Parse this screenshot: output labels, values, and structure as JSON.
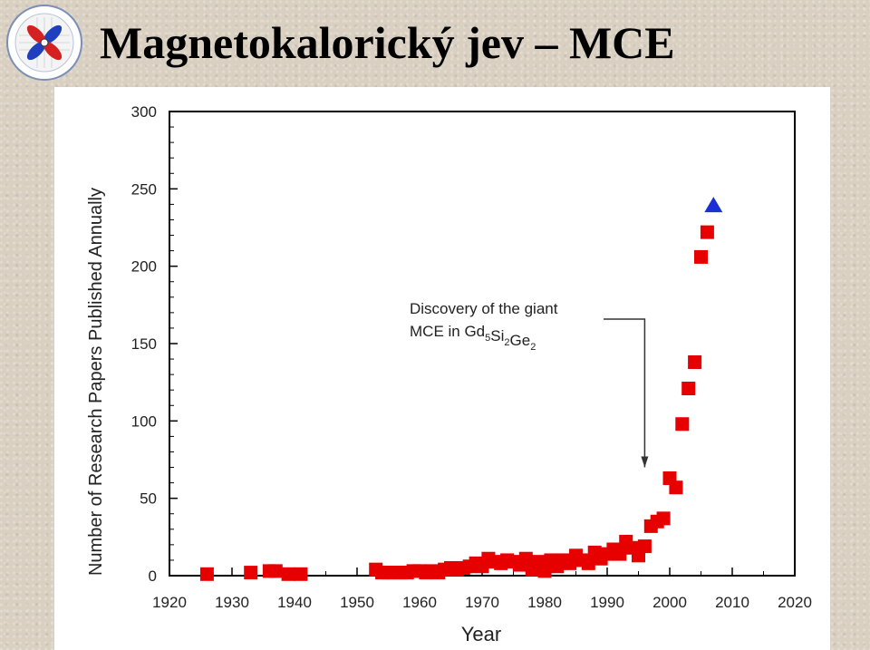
{
  "slide": {
    "title": "Magnetokalorický jev – MCE"
  },
  "colors": {
    "series_marker": "#e60000",
    "highlight_marker": "#1a2fd6",
    "axis": "#000000"
  },
  "chart_data": {
    "type": "scatter",
    "title": "",
    "xlabel": "Year",
    "ylabel": "Number of Research Papers Published Annually",
    "xlim": [
      1920,
      2020
    ],
    "ylim": [
      0,
      300
    ],
    "xticks": [
      1920,
      1930,
      1940,
      1950,
      1960,
      1970,
      1980,
      1990,
      2000,
      2010,
      2020
    ],
    "yticks": [
      0,
      50,
      100,
      150,
      200,
      250,
      300
    ],
    "grid": false,
    "series": [
      {
        "marker": "square",
        "color": "#e60000",
        "points": [
          [
            1926,
            1
          ],
          [
            1933,
            2
          ],
          [
            1936,
            3
          ],
          [
            1937,
            3
          ],
          [
            1939,
            1
          ],
          [
            1941,
            1
          ],
          [
            1953,
            4
          ],
          [
            1954,
            2
          ],
          [
            1955,
            2
          ],
          [
            1956,
            2
          ],
          [
            1957,
            2
          ],
          [
            1958,
            2
          ],
          [
            1959,
            3
          ],
          [
            1960,
            3
          ],
          [
            1961,
            2
          ],
          [
            1962,
            3
          ],
          [
            1963,
            2
          ],
          [
            1964,
            4
          ],
          [
            1965,
            5
          ],
          [
            1966,
            4
          ],
          [
            1967,
            5
          ],
          [
            1968,
            6
          ],
          [
            1969,
            8
          ],
          [
            1970,
            6
          ],
          [
            1971,
            11
          ],
          [
            1972,
            9
          ],
          [
            1973,
            8
          ],
          [
            1974,
            10
          ],
          [
            1975,
            9
          ],
          [
            1976,
            7
          ],
          [
            1977,
            11
          ],
          [
            1978,
            4
          ],
          [
            1979,
            9
          ],
          [
            1980,
            3
          ],
          [
            1981,
            10
          ],
          [
            1982,
            6
          ],
          [
            1983,
            10
          ],
          [
            1984,
            8
          ],
          [
            1985,
            13
          ],
          [
            1986,
            10
          ],
          [
            1987,
            8
          ],
          [
            1988,
            15
          ],
          [
            1989,
            11
          ],
          [
            1990,
            14
          ],
          [
            1991,
            17
          ],
          [
            1992,
            14
          ],
          [
            1993,
            22
          ],
          [
            1994,
            18
          ],
          [
            1995,
            13
          ],
          [
            1996,
            19
          ],
          [
            1997,
            32
          ],
          [
            1998,
            35
          ],
          [
            1999,
            37
          ],
          [
            2000,
            63
          ],
          [
            2001,
            57
          ],
          [
            2002,
            98
          ],
          [
            2003,
            121
          ],
          [
            2004,
            138
          ],
          [
            2005,
            206
          ],
          [
            2006,
            222
          ]
        ]
      },
      {
        "marker": "triangle",
        "color": "#1a2fd6",
        "points": [
          [
            2007,
            239
          ]
        ]
      }
    ],
    "annotation": {
      "line1": "Discovery of the giant",
      "line2_prefix": "MCE in Gd",
      "sub1": "5",
      "mid1": "Si",
      "sub2": "2",
      "mid2": "Ge",
      "sub3": "2",
      "arrow_year": 1996,
      "arrow_value": 70
    }
  }
}
